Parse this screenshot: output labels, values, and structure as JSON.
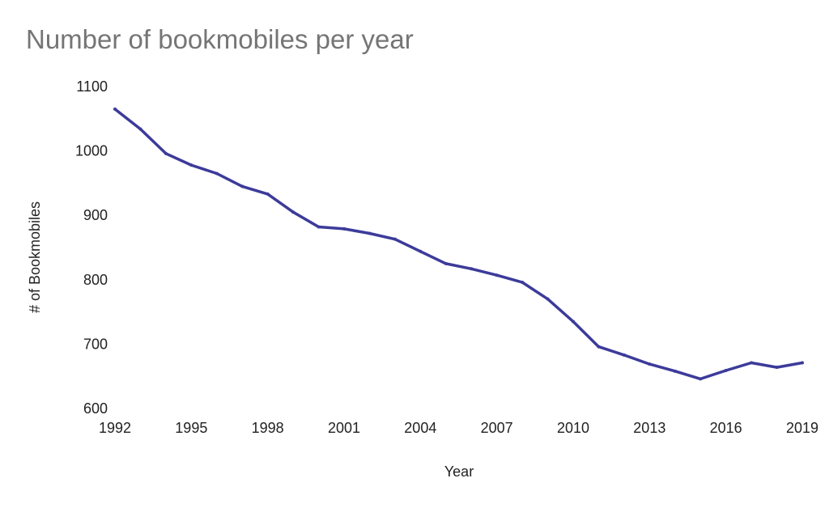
{
  "chart_data": {
    "type": "line",
    "title": "Number of bookmobiles per year",
    "xlabel": "Year",
    "ylabel": "# of Bookmobiles",
    "xlim": [
      1992,
      2019
    ],
    "ylim": [
      600,
      1100
    ],
    "x_ticks": [
      "1992",
      "1995",
      "1998",
      "2001",
      "2004",
      "2007",
      "2010",
      "2013",
      "2016",
      "2019"
    ],
    "y_ticks": [
      "600",
      "700",
      "800",
      "900",
      "1000",
      "1100"
    ],
    "grid": false,
    "legend": "none",
    "series": [
      {
        "color": "#3c3b9a",
        "points": [
          [
            1992,
            1065
          ],
          [
            1993,
            1034
          ],
          [
            1994,
            996
          ],
          [
            1995,
            978
          ],
          [
            1996,
            965
          ],
          [
            1997,
            945
          ],
          [
            1998,
            933
          ],
          [
            1999,
            905
          ],
          [
            2000,
            882
          ],
          [
            2001,
            879
          ],
          [
            2002,
            872
          ],
          [
            2003,
            863
          ],
          [
            2004,
            844
          ],
          [
            2005,
            825
          ],
          [
            2006,
            817
          ],
          [
            2007,
            807
          ],
          [
            2008,
            796
          ],
          [
            2009,
            770
          ],
          [
            2010,
            735
          ],
          [
            2011,
            696
          ],
          [
            2012,
            683
          ],
          [
            2013,
            669
          ],
          [
            2014,
            658
          ],
          [
            2015,
            646
          ],
          [
            2016,
            659
          ],
          [
            2017,
            671
          ],
          [
            2018,
            664
          ],
          [
            2019,
            671
          ]
        ]
      }
    ]
  }
}
